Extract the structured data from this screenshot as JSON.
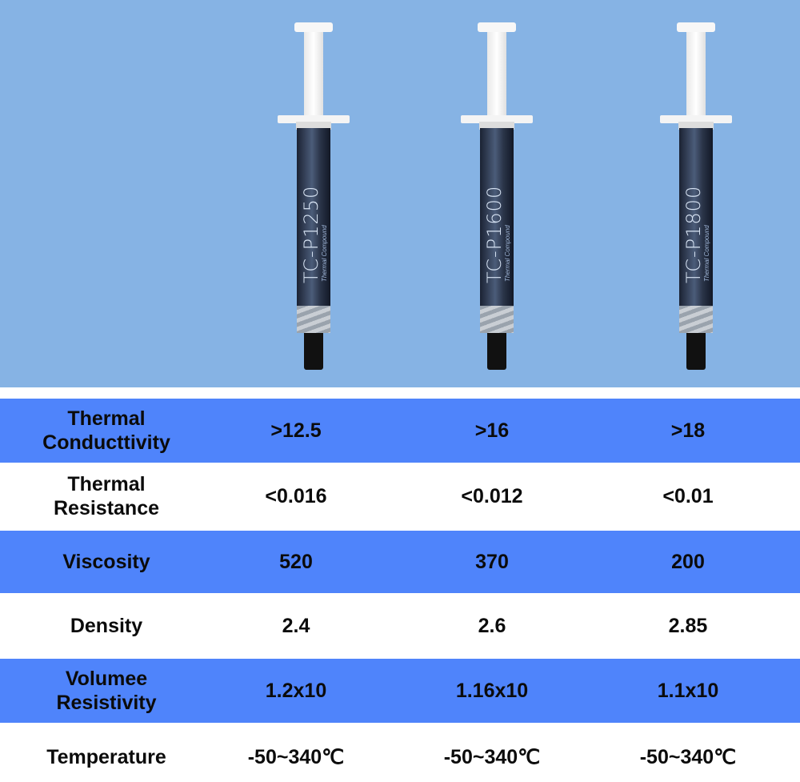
{
  "colors": {
    "hero_background": "#86b3e4",
    "row_blue": "#4f84fb",
    "row_white": "#ffffff"
  },
  "products": [
    {
      "model": "TC-P1250",
      "subtitle": "Thermal Compound"
    },
    {
      "model": "TC-P1600",
      "subtitle": "Thermal Compound"
    },
    {
      "model": "TC-P1800",
      "subtitle": "Thermal Compound"
    }
  ],
  "table": {
    "rows": [
      {
        "label": "Thermal Conducttivity",
        "values": [
          ">12.5",
          ">16",
          ">18"
        ]
      },
      {
        "label": "Thermal Resistance",
        "values": [
          "<0.016",
          "<0.012",
          "<0.01"
        ]
      },
      {
        "label": "Viscosity",
        "values": [
          "520",
          "370",
          "200"
        ]
      },
      {
        "label": "Density",
        "values": [
          "2.4",
          "2.6",
          "2.85"
        ]
      },
      {
        "label": "Volumee Resistivity",
        "values": [
          "1.2x10",
          "1.16x10",
          "1.1x10"
        ]
      },
      {
        "label": "Temperature",
        "values": [
          "-50~340℃",
          "-50~340℃",
          "-50~340℃"
        ]
      }
    ]
  }
}
